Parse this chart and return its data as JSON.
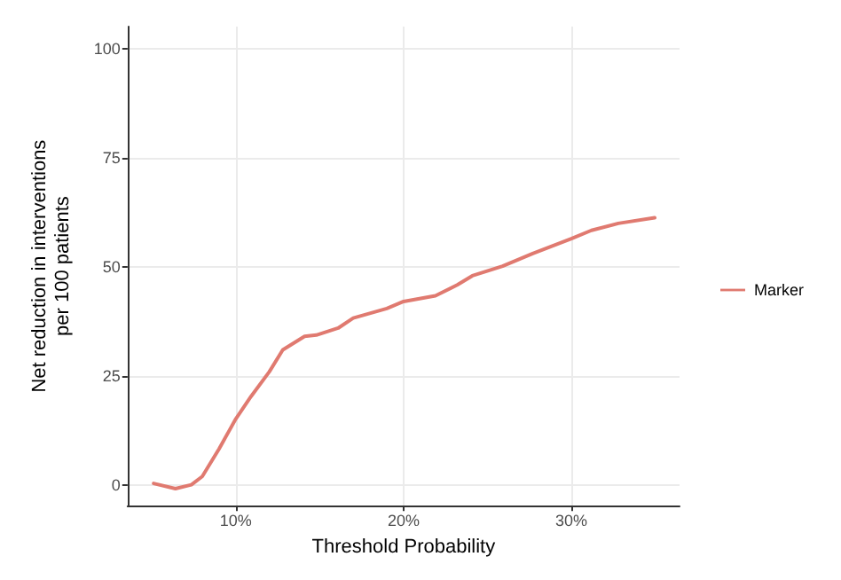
{
  "chart_data": {
    "type": "line",
    "xlabel": "Threshold Probability",
    "ylabel": "Net reduction in interventions\nper 100 patients",
    "xlim": [
      3.55,
      36.45
    ],
    "xticks": [
      {
        "value": 10,
        "label": "10%"
      },
      {
        "value": 20,
        "label": "20%"
      },
      {
        "value": 30,
        "label": "30%"
      }
    ],
    "ylim": [
      -4.8,
      105
    ],
    "yticks": [
      0,
      25,
      50,
      75,
      100
    ],
    "grid": true,
    "legend": "right",
    "line_style": "solid",
    "marker": "none",
    "series": [
      {
        "name": "Marker",
        "color": "#e07a70",
        "x": [
          5.1,
          6.4,
          7.35,
          8.0,
          9.0,
          10,
          10.9,
          12.0,
          12.8,
          14.1,
          14.8,
          16.1,
          17.0,
          19.0,
          20,
          21.9,
          23.2,
          24.1,
          25.9,
          27.7,
          30,
          31.2,
          32.8,
          34.97
        ],
        "values": [
          0.3,
          -0.9,
          0,
          1.9,
          8.2,
          15.1,
          20.2,
          25.9,
          30.9,
          34.0,
          34.3,
          35.9,
          38.2,
          40.4,
          42.0,
          43.3,
          45.8,
          47.9,
          50.1,
          53.0,
          56.4,
          58.3,
          59.9,
          61.2
        ]
      }
    ]
  }
}
